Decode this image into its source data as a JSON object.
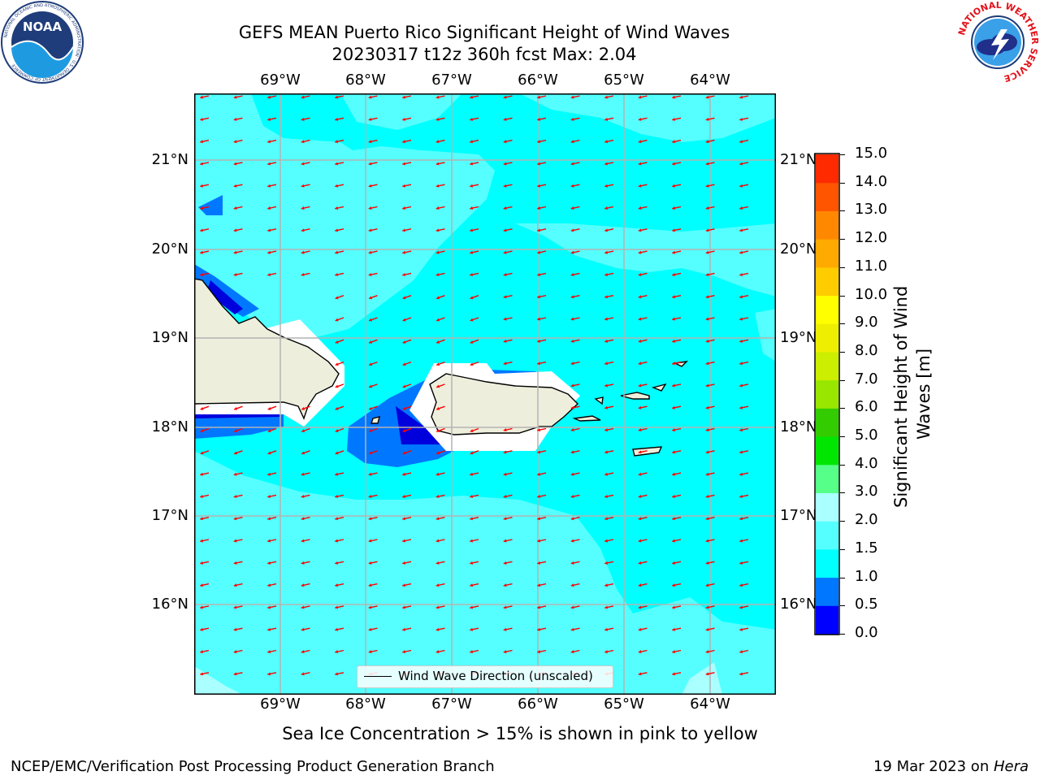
{
  "title_line1": "GEFS MEAN Puerto Rico Significant Height of Wind Waves",
  "title_line2": "20230317 t12z 360h fcst   Max: 2.04",
  "lon_labels": [
    "69°W",
    "68°W",
    "67°W",
    "66°W",
    "65°W",
    "64°W"
  ],
  "lat_labels": [
    "21°N",
    "20°N",
    "19°N",
    "18°N",
    "17°N",
    "16°N"
  ],
  "legend_label": "Wind Wave Direction (unscaled)",
  "colorbar": {
    "label": "Significant Height of Wind Waves [m]",
    "ticks": [
      "0.0",
      "0.5",
      "1.0",
      "1.5",
      "2.0",
      "3.0",
      "4.0",
      "5.0",
      "6.0",
      "7.0",
      "8.0",
      "9.0",
      "10.0",
      "11.0",
      "12.0",
      "13.0",
      "14.0",
      "15.0"
    ],
    "colors": [
      "#0000ff",
      "#0077ff",
      "#00ffff",
      "#55ffff",
      "#aaffff",
      "#55ff88",
      "#00e600",
      "#33cc00",
      "#99e600",
      "#ccee00",
      "#eeee00",
      "#ffff00",
      "#ffcc00",
      "#ffaa00",
      "#ff8800",
      "#ff5500",
      "#ff2a00",
      "#ff0000"
    ]
  },
  "note": "Sea Ice Concentration > 15% is shown in pink to yellow",
  "footer_left": "NCEP/EMC/Verification Post Processing Product Generation Branch",
  "footer_right_date": "19 Mar 2023 on ",
  "footer_right_machine": "Hera",
  "logo_left": "NOAA",
  "logo_left_ring": "NATIONAL OCEANIC AND ATMOSPHERIC ADMINISTRATION · U.S. DEPARTMENT OF COMMERCE",
  "logo_right_ring": "NATIONAL WEATHER SERVICE",
  "arrow_color": "#ff0000"
}
